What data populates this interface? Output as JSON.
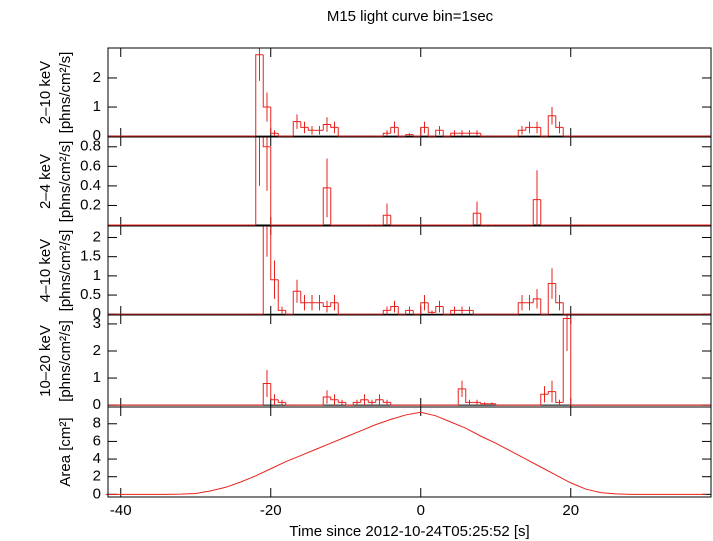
{
  "chart_data": [
    {
      "type": "histogram",
      "title": "M15 light curve bin=1sec",
      "ylabel": [
        "2–10 keV",
        "[phns/cm²/s]"
      ],
      "bins": [
        -42,
        -23,
        -22,
        -21,
        -20,
        -19,
        -18,
        -17,
        -16,
        -15,
        -14,
        -13,
        -12,
        -11,
        -10,
        -9,
        -8,
        -7,
        -6,
        -5,
        -4,
        -3,
        -2,
        -1,
        0,
        1,
        2,
        3,
        4,
        5,
        6,
        7,
        8,
        9,
        10,
        11,
        12,
        13,
        14,
        15,
        16,
        17,
        18,
        19,
        20,
        21,
        39
      ],
      "values": [
        0,
        0,
        2.8,
        1.0,
        0.1,
        0,
        0,
        0.5,
        0.3,
        0.2,
        0.2,
        0.4,
        0.3,
        0,
        0,
        0,
        0,
        0,
        0,
        0.1,
        0.3,
        0,
        0.05,
        0,
        0.3,
        0,
        0.2,
        0,
        0.1,
        0.1,
        0.1,
        0.1,
        0,
        0,
        0,
        0,
        0,
        0.2,
        0.3,
        0.3,
        0,
        0.7,
        0.3,
        0,
        0,
        0
      ],
      "errors": [
        0,
        0,
        0.9,
        0.5,
        0.1,
        0,
        0,
        0.25,
        0.2,
        0.15,
        0.15,
        0.25,
        0.2,
        0,
        0,
        0,
        0,
        0,
        0,
        0.1,
        0.2,
        0,
        0.05,
        0,
        0.2,
        0,
        0.15,
        0,
        0.1,
        0.1,
        0.1,
        0.1,
        0,
        0,
        0,
        0,
        0,
        0.15,
        0.2,
        0.2,
        0,
        0.3,
        0.2,
        0,
        0,
        0
      ],
      "color": "#e8231e",
      "error_color": "#e8231e",
      "zero_line": true,
      "xlim": [
        -41.7,
        38.7
      ],
      "xticks": [
        -40,
        -20,
        0,
        20
      ],
      "ylim": [
        -0.03,
        3.03
      ],
      "yticks": [
        0,
        1,
        2
      ]
    },
    {
      "type": "histogram",
      "ylabel": [
        "2–4 keV",
        "[phns/cm²/s]"
      ],
      "bins": [
        -42,
        -23,
        -22,
        -21,
        -20,
        -19,
        -18,
        -17,
        -16,
        -15,
        -14,
        -13,
        -12,
        -11,
        -10,
        -9,
        -8,
        -7,
        -6,
        -5,
        -4,
        -3,
        -2,
        -1,
        0,
        1,
        2,
        3,
        4,
        5,
        6,
        7,
        8,
        9,
        10,
        11,
        12,
        13,
        14,
        15,
        16,
        17,
        18,
        19,
        20,
        21,
        39
      ],
      "values": [
        0,
        0,
        0.9,
        0.8,
        0,
        0,
        0,
        0,
        0,
        0,
        0,
        0.38,
        0,
        0,
        0,
        0,
        0,
        0,
        0,
        0.1,
        0,
        0,
        0,
        0,
        0,
        0,
        0,
        0,
        0,
        0,
        0,
        0.12,
        0,
        0,
        0,
        0,
        0,
        0,
        0,
        0.26,
        0,
        0,
        0,
        0,
        0,
        0
      ],
      "errors": [
        0,
        0,
        0.5,
        0.45,
        0,
        0,
        0,
        0,
        0,
        0,
        0,
        0.3,
        0,
        0,
        0,
        0,
        0,
        0,
        0,
        0.12,
        0,
        0,
        0,
        0,
        0,
        0,
        0,
        0,
        0,
        0,
        0,
        0.12,
        0,
        0,
        0,
        0,
        0,
        0,
        0,
        0.3,
        0,
        0,
        0,
        0,
        0,
        0
      ],
      "color": "#e8231e",
      "error_color": "#e8231e",
      "zero_line": true,
      "xlim": [
        -41.7,
        38.7
      ],
      "xticks": [
        -40,
        -20,
        0,
        20
      ],
      "ylim": [
        -0.01,
        0.9
      ],
      "yticks": [
        0.2,
        0.4,
        0.6,
        0.8
      ]
    },
    {
      "type": "histogram",
      "ylabel": [
        "4–10 keV",
        "[phns/cm²/s]"
      ],
      "bins": [
        -42,
        -23,
        -22,
        -21,
        -20,
        -19,
        -18,
        -17,
        -16,
        -15,
        -14,
        -13,
        -12,
        -11,
        -10,
        -9,
        -8,
        -7,
        -6,
        -5,
        -4,
        -3,
        -2,
        -1,
        0,
        1,
        2,
        3,
        4,
        5,
        6,
        7,
        8,
        9,
        10,
        11,
        12,
        13,
        14,
        15,
        16,
        17,
        18,
        19,
        20,
        21,
        39
      ],
      "values": [
        0,
        0,
        0,
        2.3,
        0.9,
        0.1,
        0,
        0.6,
        0.3,
        0.3,
        0.3,
        0.2,
        0.3,
        0,
        0,
        0,
        0,
        0,
        0,
        0.1,
        0.2,
        0,
        0.1,
        0,
        0.3,
        0.05,
        0.2,
        0,
        0.1,
        0.1,
        0.1,
        0,
        0,
        0,
        0,
        0,
        0,
        0.3,
        0.3,
        0.4,
        0,
        0.8,
        0.3,
        0,
        0,
        0
      ],
      "errors": [
        0,
        0,
        0,
        0.8,
        0.5,
        0.1,
        0,
        0.3,
        0.2,
        0.2,
        0.2,
        0.15,
        0.2,
        0,
        0,
        0,
        0,
        0,
        0,
        0.1,
        0.15,
        0,
        0.1,
        0,
        0.2,
        0.05,
        0.15,
        0,
        0.1,
        0.1,
        0.1,
        0,
        0,
        0,
        0,
        0,
        0,
        0.2,
        0.2,
        0.25,
        0,
        0.4,
        0.2,
        0,
        0,
        0
      ],
      "color": "#e8231e",
      "error_color": "#e8231e",
      "zero_line": true,
      "xlim": [
        -41.7,
        38.7
      ],
      "xticks": [
        -40,
        -20,
        0,
        20
      ],
      "ylim": [
        -0.02,
        2.3
      ],
      "yticks": [
        0,
        0.5,
        1,
        1.5,
        2
      ]
    },
    {
      "type": "histogram",
      "ylabel": [
        "10–20 keV",
        "[phns/cm²/s]"
      ],
      "bins": [
        -42,
        -23,
        -22,
        -21,
        -20,
        -19,
        -18,
        -17,
        -16,
        -15,
        -14,
        -13,
        -12,
        -11,
        -10,
        -9,
        -8,
        -7,
        -6,
        -5,
        -4,
        -3,
        -2,
        -1,
        0,
        1,
        2,
        3,
        4,
        5,
        6,
        7,
        8,
        9,
        10,
        11,
        12,
        13,
        14,
        15,
        16,
        17,
        18,
        19,
        20,
        21,
        39
      ],
      "values": [
        0,
        0,
        0,
        0.8,
        0.2,
        0.1,
        0,
        0,
        0,
        0,
        0,
        0.3,
        0.2,
        0.1,
        0,
        0.1,
        0.2,
        0.1,
        0.2,
        0.1,
        0,
        0,
        0,
        0,
        0,
        0,
        0,
        0,
        0,
        0.6,
        0.1,
        0.1,
        0.05,
        0.05,
        0,
        0,
        0,
        0,
        0,
        0,
        0.4,
        0.5,
        0.1,
        3.2,
        0,
        0
      ],
      "errors": [
        0,
        0,
        0,
        0.5,
        0.2,
        0.1,
        0,
        0,
        0,
        0,
        0,
        0.25,
        0.2,
        0.1,
        0,
        0.1,
        0.2,
        0.1,
        0.2,
        0.1,
        0,
        0,
        0,
        0,
        0,
        0,
        0,
        0,
        0,
        0.3,
        0.1,
        0.1,
        0.05,
        0.05,
        0,
        0,
        0,
        0,
        0,
        0,
        0.3,
        0.4,
        0.1,
        1.2,
        0,
        0
      ],
      "color": "#e8231e",
      "error_color": "#e8231e",
      "zero_line": true,
      "xlim": [
        -41.7,
        38.7
      ],
      "xticks": [
        -40,
        -20,
        0,
        20
      ],
      "ylim": [
        -0.07,
        3.33
      ],
      "yticks": [
        0,
        1,
        2,
        3
      ]
    },
    {
      "type": "line",
      "ylabel": [
        "Area [cm²]"
      ],
      "xlabel": "Time since 2012-10-24T05:25:52 [s]",
      "x": [
        -42,
        -40,
        -38,
        -36,
        -34,
        -32,
        -30,
        -28,
        -26,
        -24,
        -22,
        -20,
        -18,
        -16,
        -14,
        -12,
        -10,
        -8,
        -6,
        -4,
        -2,
        0,
        2,
        4,
        6,
        8,
        10,
        12,
        14,
        16,
        18,
        20,
        22,
        24,
        26,
        28,
        30,
        32,
        34,
        36,
        38
      ],
      "values": [
        0,
        0,
        0,
        0,
        0,
        0.02,
        0.1,
        0.4,
        0.8,
        1.4,
        2.1,
        2.9,
        3.7,
        4.4,
        5.1,
        5.8,
        6.5,
        7.2,
        7.9,
        8.5,
        9.0,
        9.3,
        8.9,
        8.2,
        7.5,
        6.6,
        5.8,
        4.9,
        4.0,
        3.1,
        2.2,
        1.3,
        0.6,
        0.2,
        0.05,
        0,
        0,
        0,
        0,
        0,
        0
      ],
      "color": "#e8231e",
      "xlim": [
        -41.7,
        38.7
      ],
      "xticks": [
        -40,
        -20,
        0,
        20
      ],
      "ylim": [
        -0.3,
        9.9
      ],
      "yticks": [
        0,
        2,
        4,
        6,
        8
      ]
    }
  ]
}
